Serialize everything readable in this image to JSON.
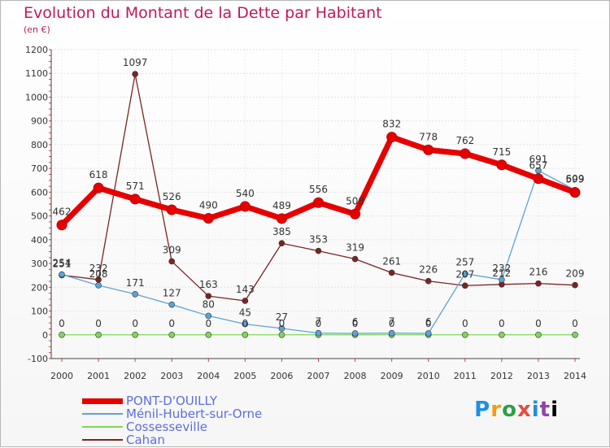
{
  "chart_data": {
    "type": "line",
    "title": "Evolution du Montant de la Dette par Habitant",
    "subtitle": "(en €)",
    "ylim": [
      -100,
      1200
    ],
    "y_ticks": [
      -100,
      0,
      100,
      200,
      300,
      400,
      500,
      600,
      700,
      800,
      900,
      1000,
      1100,
      1200
    ],
    "categories": [
      "2000",
      "2001",
      "2002",
      "2003",
      "2004",
      "2005",
      "2006",
      "2007",
      "2008",
      "2009",
      "2010",
      "2011",
      "2012",
      "2013",
      "2014"
    ],
    "grid": true,
    "legend_position": "bottom-left",
    "series": [
      {
        "name": "PONT-D'OUILLY",
        "color": "#e60000",
        "values": [
          462,
          618,
          571,
          526,
          490,
          540,
          489,
          556,
          508,
          832,
          778,
          762,
          715,
          657,
          599
        ]
      },
      {
        "name": "Ménil-Hubert-sur-Orne",
        "color": "#5ba3d9",
        "values": [
          254,
          208,
          171,
          127,
          80,
          45,
          27,
          7,
          6,
          7,
          6,
          257,
          232,
          691,
          609
        ]
      },
      {
        "name": "Cossesseville",
        "color": "#7ed957",
        "values": [
          0,
          0,
          0,
          0,
          0,
          0,
          0,
          0,
          0,
          0,
          0,
          0,
          0,
          0,
          0
        ]
      },
      {
        "name": "Cahan",
        "color": "#7b2424",
        "values": [
          251,
          232,
          1097,
          309,
          163,
          143,
          385,
          353,
          319,
          261,
          226,
          207,
          212,
          216,
          209
        ]
      }
    ]
  },
  "logo": {
    "letters": [
      "P",
      "r",
      "o",
      "x",
      "i",
      "t",
      "i"
    ]
  }
}
